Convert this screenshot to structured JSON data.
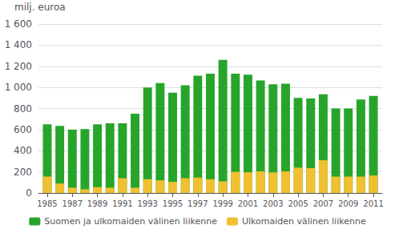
{
  "chart_data": {
    "type": "bar",
    "stacked": true,
    "x": [
      1985,
      1986,
      1987,
      1988,
      1989,
      1990,
      1991,
      1992,
      1993,
      1994,
      1995,
      1996,
      1997,
      1998,
      1999,
      2000,
      2001,
      2002,
      2003,
      2004,
      2005,
      2006,
      2007,
      2008,
      2009,
      2010,
      2011
    ],
    "series": [
      {
        "name": "Suomen ja ulkomaiden välinen liikenne",
        "color": "#27a52a",
        "values": [
          650,
          635,
          600,
          605,
          650,
          660,
          660,
          750,
          1000,
          1040,
          950,
          1020,
          1110,
          1130,
          1260,
          1130,
          1120,
          1065,
          1030,
          1035,
          900,
          895,
          935,
          800,
          800,
          885,
          920
        ]
      },
      {
        "name": "Ulkomaiden välinen liikenne",
        "color": "#f0c030",
        "values": [
          155,
          90,
          50,
          35,
          55,
          50,
          140,
          50,
          130,
          120,
          105,
          140,
          145,
          130,
          110,
          200,
          195,
          205,
          195,
          205,
          240,
          235,
          310,
          155,
          155,
          155,
          165
        ]
      }
    ],
    "ylabel": "milj. euroa",
    "xlim": [
      1984.3,
      2011.7
    ],
    "xticks": [
      1985,
      1987,
      1989,
      1991,
      1993,
      1995,
      1997,
      1999,
      2001,
      2003,
      2005,
      2007,
      2009,
      2011
    ],
    "ylim": [
      0,
      1600
    ],
    "yticks": [
      0,
      200,
      400,
      600,
      800,
      {
        "value": 1000,
        "label": "1 000"
      },
      {
        "value": 1200,
        "label": "1 200"
      },
      {
        "value": 1400,
        "label": "1 400"
      },
      {
        "value": 1600,
        "label": "1 600"
      }
    ],
    "grid": true,
    "legend": "bottom"
  }
}
